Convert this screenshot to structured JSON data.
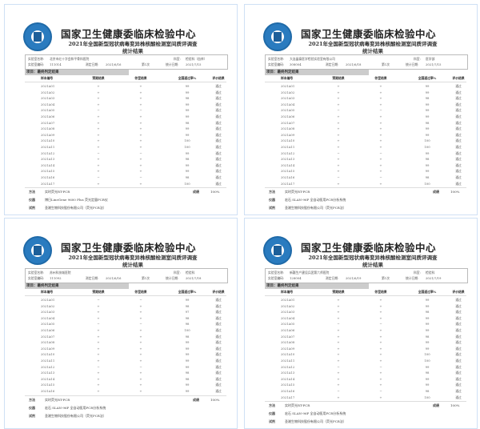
{
  "common": {
    "org_title": "国家卫生健康委临床检验中心",
    "subtitle": "2021年全国新型冠状病毒变异株核酸检测室间质评调查",
    "subtitle2": "统计结果",
    "lab_name_label": "实验室名称:",
    "dept_label": "科室:",
    "code_label": "实验室编码:",
    "date_label": "测定日期:",
    "stat_date_label": "统计日期:",
    "section": "项目：最终判定结果",
    "headers": [
      "样本编号",
      "预期结果",
      "你室结果",
      "全国通过率%",
      "评价结果"
    ],
    "method_label": "方法",
    "instrument_label": "仪器",
    "reagent_label": "试剂",
    "score_label": "成绩"
  },
  "reports": [
    {
      "lab_name": "北京市红十字会和平骨科医院",
      "dept": "检验科（血库）",
      "code": "111014",
      "date": "2021/6/16",
      "round": "第1次",
      "stat_date": "2021/7/15",
      "rates": [
        99,
        99,
        98,
        99,
        99,
        99,
        98,
        99,
        99,
        100,
        100,
        99,
        98,
        99,
        99,
        98,
        100
      ],
      "negatives": [
        5,
        12,
        16
      ],
      "method": "实时荧光RT-PCR",
      "instrument": "博日LineGene 9600 Plus 荧光定量PCR仪",
      "reagent": "圣湘生物科技股份有限公司（荧光PCR法）",
      "score": "100%"
    },
    {
      "lab_name": "大连晶泰医学检验实验室有限公司",
      "dept": "医学部",
      "code": "308004",
      "date": "2021/6/18",
      "round": "第1次",
      "stat_date": "2021/7/15",
      "rates": [
        99,
        99,
        98,
        99,
        99,
        99,
        98,
        99,
        99,
        100,
        100,
        99,
        98,
        99,
        99,
        98,
        100
      ],
      "negatives": [
        5,
        12,
        16
      ],
      "method": "实时荧光RT-PCR",
      "instrument": "宏石 SLAN-96P 全自动医用PCR分析系统",
      "reagent": "圣湘生物科技股份有限公司（荧光PCR法）",
      "score": "100%"
    },
    {
      "lab_name": "苏州科技城医院",
      "dept": "检验科",
      "code": "111092",
      "date": "2021/6/16",
      "round": "第1次",
      "stat_date": "2021/7/18",
      "rates": [
        99,
        98,
        97,
        98,
        98,
        100,
        98,
        99,
        99,
        99,
        99,
        99,
        98,
        98,
        99,
        99
      ],
      "negatives": [
        1,
        5,
        12
      ],
      "method": "实时荧光RT-PCR",
      "instrument": "宏石 SLAN-96P 全自动医用PCR分析系统",
      "reagent": "圣湘生物科技股份有限公司（荧光PCR法）",
      "score": "100%"
    },
    {
      "lab_name": "新疆生产建设兵团第六师医院",
      "dept": "检验科",
      "code": "128004",
      "date": "2021/6/19",
      "round": "第1次",
      "stat_date": "2021/7/19",
      "rates": [
        99,
        99,
        98,
        99,
        99,
        99,
        98,
        99,
        99,
        100,
        100,
        99,
        98,
        99,
        99,
        98,
        100
      ],
      "negatives": [
        5,
        12,
        16
      ],
      "method": "实时荧光RT-PCR",
      "instrument": "宏石 SLAN-96P 全自动医用PCR分析系统",
      "reagent": "圣湘生物科技股份有限公司（荧光PCR法）",
      "score": "100%"
    }
  ],
  "sample_prefix": "2021A",
  "pass": "通过",
  "pos": "+",
  "neg": "−"
}
